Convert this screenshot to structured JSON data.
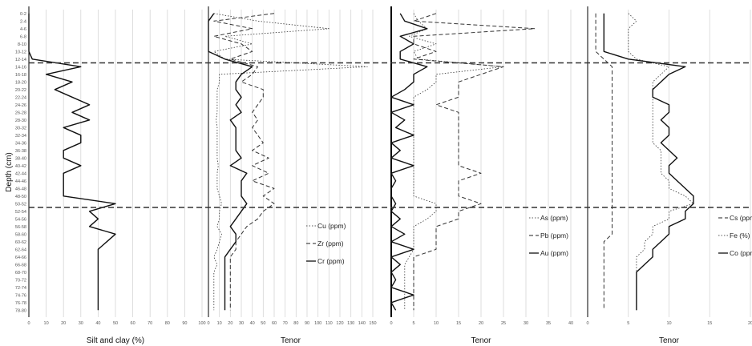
{
  "figure": {
    "depth_axis_title": "Depth (cm)",
    "depth_ticks": [
      "0-2",
      "2-4",
      "4-6",
      "6-8",
      "8-10",
      "10-12",
      "12-14",
      "14-16",
      "16-18",
      "18-20",
      "20-22",
      "22-24",
      "24-26",
      "26-28",
      "28-30",
      "30-32",
      "32-34",
      "34-36",
      "36-38",
      "38-40",
      "40-42",
      "42-44",
      "44-46",
      "46-48",
      "48-50",
      "50-52",
      "52-54",
      "54-56",
      "56-58",
      "58-60",
      "60-62",
      "62-64",
      "64-66",
      "66-68",
      "68-70",
      "70-72",
      "72-74",
      "74-76",
      "76-78",
      "78-80"
    ],
    "reference_lines_depth_index": [
      6.5,
      25.5
    ]
  },
  "chart_data": [
    {
      "type": "line",
      "orientation": "depth-profile",
      "xlabel": "Silt and clay (%)",
      "x_ticks": [
        "0",
        "10",
        "20",
        "30",
        "40",
        "50",
        "60",
        "70",
        "80",
        "90",
        "100"
      ],
      "xlim": [
        0,
        100
      ],
      "series": [
        {
          "name": "",
          "style": "solid",
          "values": [
            0,
            0,
            0,
            0,
            0,
            0,
            2,
            30,
            10,
            25,
            15,
            25,
            35,
            25,
            35,
            20,
            30,
            30,
            20,
            20,
            30,
            20,
            20,
            20,
            20,
            50,
            35,
            40,
            35,
            50,
            45,
            40,
            40,
            40,
            40,
            40,
            40,
            40,
            40,
            40
          ]
        }
      ]
    },
    {
      "type": "line",
      "orientation": "depth-profile",
      "xlabel": "Tenor",
      "x_ticks": [
        "0",
        "10",
        "20",
        "30",
        "40",
        "50",
        "60",
        "70",
        "80",
        "90",
        "100",
        "110",
        "120",
        "130",
        "140",
        "150"
      ],
      "xlim": [
        0,
        150
      ],
      "series": [
        {
          "name": "Cu (ppm)",
          "style": "dotted",
          "values": [
            5,
            45,
            110,
            15,
            40,
            5,
            15,
            145,
            10,
            10,
            8,
            8,
            8,
            8,
            7,
            8,
            8,
            8,
            8,
            8,
            9,
            8,
            8,
            8,
            10,
            12,
            10,
            10,
            8,
            12,
            10,
            8,
            5,
            8,
            5,
            5,
            5,
            5,
            5,
            5
          ]
        },
        {
          "name": "Zr (ppm)",
          "style": "dashed",
          "values": [
            60,
            5,
            40,
            5,
            30,
            40,
            20,
            45,
            40,
            30,
            50,
            50,
            45,
            40,
            45,
            40,
            45,
            50,
            40,
            55,
            40,
            55,
            40,
            60,
            50,
            60,
            50,
            45,
            35,
            30,
            25,
            25,
            20,
            20,
            20,
            20,
            20,
            20,
            20,
            20
          ]
        },
        {
          "name": "Cr (ppm)",
          "style": "solid",
          "values": [
            5,
            0,
            0,
            0,
            0,
            0,
            15,
            40,
            30,
            25,
            25,
            30,
            25,
            30,
            20,
            25,
            25,
            25,
            25,
            30,
            20,
            35,
            30,
            30,
            30,
            35,
            30,
            25,
            20,
            25,
            25,
            20,
            15,
            15,
            15,
            15,
            15,
            15,
            15,
            15
          ]
        }
      ],
      "legend": {
        "position": "lower-right"
      }
    },
    {
      "type": "line",
      "orientation": "depth-profile",
      "xlabel": "Tenor",
      "x_ticks": [
        "0",
        "5",
        "10",
        "15",
        "20",
        "25",
        "30",
        "35",
        "40"
      ],
      "xlim": [
        0,
        40
      ],
      "series": [
        {
          "name": "As (ppm)",
          "style": "dotted",
          "values": [
            5,
            6,
            8,
            4,
            10,
            5,
            6,
            25,
            10,
            10,
            8,
            5,
            5,
            5,
            5,
            5,
            5,
            5,
            5,
            5,
            5,
            5,
            5,
            5,
            5,
            10,
            10,
            8,
            5,
            5,
            5,
            5,
            4,
            3,
            3,
            3,
            3,
            3,
            3,
            3
          ]
        },
        {
          "name": "Pb (ppm)",
          "style": "dashed",
          "values": [
            10,
            5,
            32,
            5,
            5,
            10,
            5,
            25,
            20,
            15,
            15,
            15,
            10,
            15,
            15,
            15,
            15,
            15,
            15,
            15,
            15,
            20,
            15,
            15,
            15,
            20,
            15,
            15,
            10,
            10,
            10,
            10,
            5,
            5,
            5,
            5,
            5,
            5,
            5,
            5
          ]
        },
        {
          "name": "Au (ppm)",
          "style": "solid",
          "values": [
            2,
            3,
            8,
            2,
            5,
            2,
            2,
            8,
            5,
            5,
            3,
            0,
            5,
            0,
            3,
            1,
            5,
            0,
            2,
            0,
            5,
            0,
            1,
            0,
            0,
            1,
            0,
            2,
            0,
            3,
            0,
            5,
            0,
            2,
            0,
            1,
            0,
            5,
            0,
            1
          ]
        }
      ],
      "legend": {
        "position": "right"
      }
    },
    {
      "type": "line",
      "orientation": "depth-profile",
      "xlabel": "Tenor",
      "x_ticks": [
        "0",
        "5",
        "10",
        "15",
        "20"
      ],
      "xlim": [
        0,
        20
      ],
      "series": [
        {
          "name": "Cs (ppm)",
          "style": "dashed",
          "values": [
            1,
            1,
            1,
            1,
            1,
            1,
            2,
            3,
            3,
            3,
            3,
            3,
            3,
            3,
            3,
            3,
            3,
            3,
            3,
            3,
            3,
            3,
            3,
            3,
            3,
            3,
            3,
            3,
            3,
            3,
            2,
            2,
            2,
            2,
            2,
            2,
            2,
            2,
            2,
            2
          ]
        },
        {
          "name": "Fe (%)",
          "style": "dotted",
          "values": [
            5,
            6,
            5,
            5,
            5,
            5,
            6,
            10,
            9,
            8,
            8,
            8,
            8,
            8,
            8,
            8,
            8,
            8,
            9,
            9,
            9,
            9,
            10,
            10,
            12,
            13,
            10,
            10,
            8,
            8,
            7,
            7,
            6,
            6,
            6,
            6,
            6,
            6,
            6,
            6
          ]
        },
        {
          "name": "Co (ppm)",
          "style": "solid",
          "values": [
            2,
            2,
            2,
            2,
            2,
            2,
            5,
            12,
            10,
            9,
            8,
            8,
            10,
            10,
            9,
            10,
            10,
            9,
            10,
            11,
            10,
            10,
            11,
            12,
            13,
            13,
            12,
            12,
            10,
            10,
            9,
            8,
            8,
            7,
            6,
            6,
            6,
            6,
            6,
            6
          ]
        }
      ],
      "legend": {
        "position": "right"
      }
    }
  ]
}
